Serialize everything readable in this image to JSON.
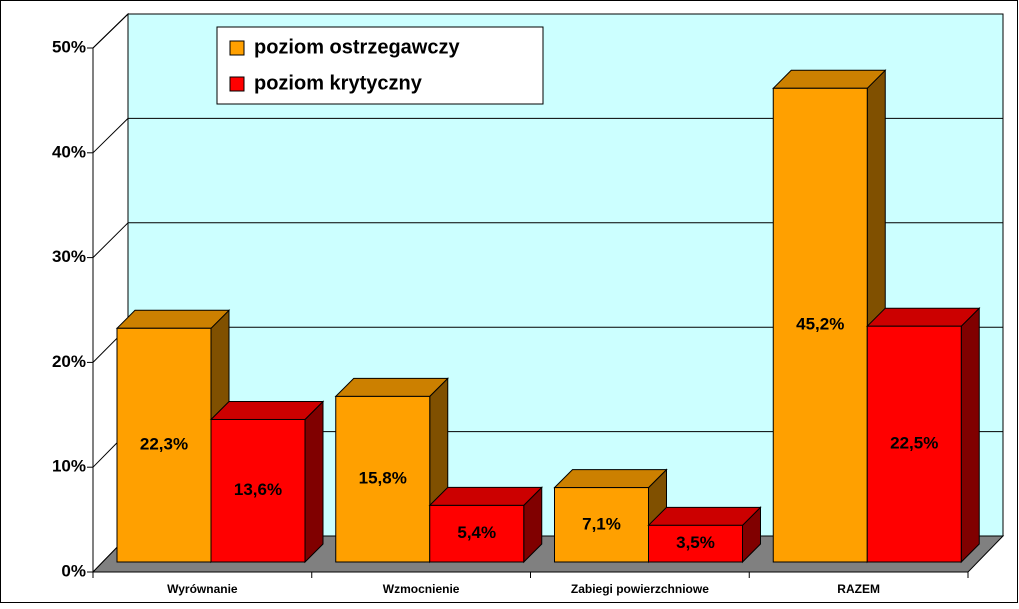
{
  "chart_data": {
    "type": "bar3d",
    "categories": [
      "Wyrównanie",
      "Wzmocnienie",
      "Zabiegi powierzchniowe",
      "RAZEM"
    ],
    "series": [
      {
        "name": "poziom ostrzegawczy",
        "color": "#ffa000",
        "values": [
          22.3,
          15.8,
          7.1,
          45.2
        ],
        "value_labels": [
          "22,3%",
          "15,8%",
          "7,1%",
          "45,2%"
        ]
      },
      {
        "name": "poziom krytyczny",
        "color": "#ff0000",
        "values": [
          13.6,
          5.4,
          3.5,
          22.5
        ],
        "value_labels": [
          "13,6%",
          "5,4%",
          "3,5%",
          "22,5%"
        ]
      }
    ],
    "ylim": [
      0,
      50
    ],
    "yticks": [
      {
        "value": 0,
        "label": "0%"
      },
      {
        "value": 10,
        "label": "10%"
      },
      {
        "value": 20,
        "label": "20%"
      },
      {
        "value": 30,
        "label": "30%"
      },
      {
        "value": 40,
        "label": "40%"
      },
      {
        "value": 50,
        "label": "50%"
      }
    ],
    "grid": true
  }
}
